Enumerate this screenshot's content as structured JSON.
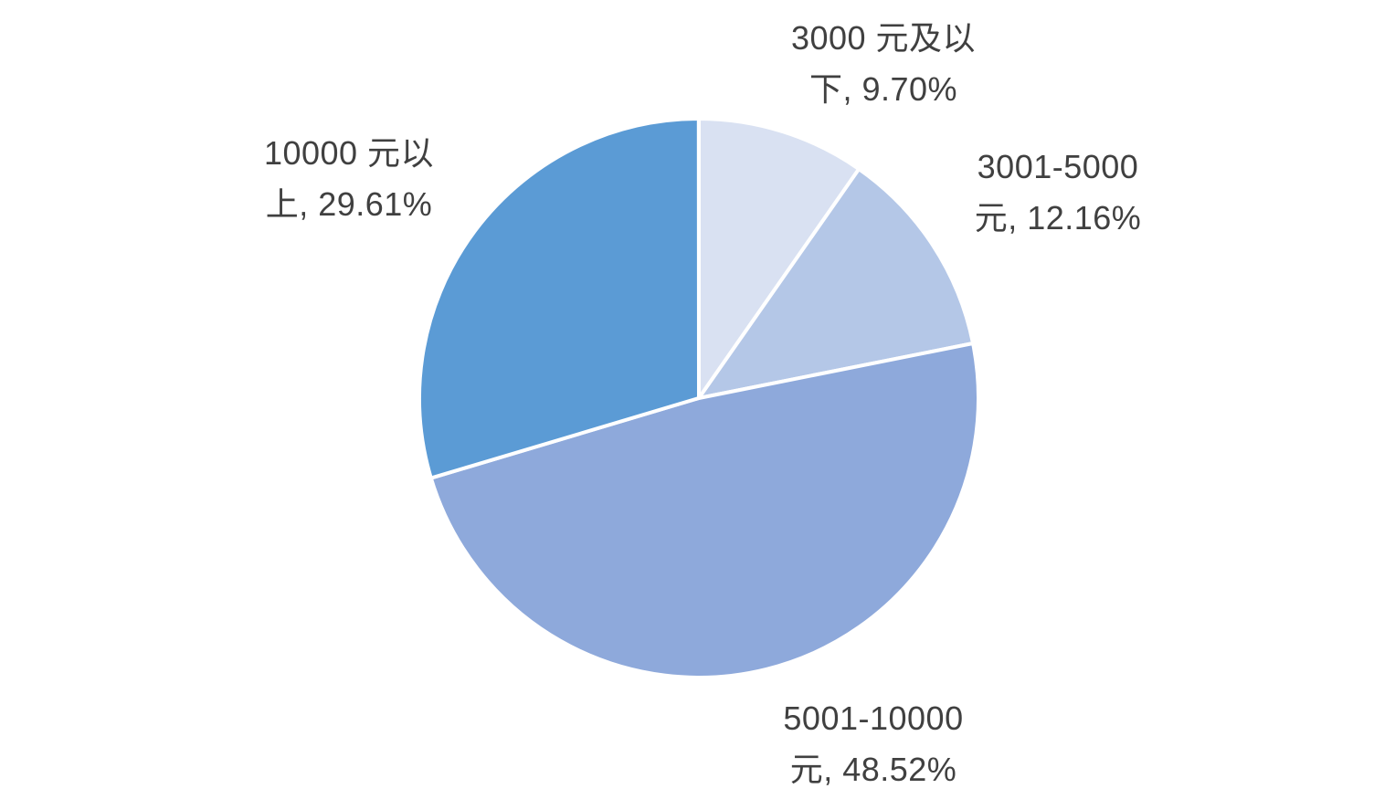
{
  "chart_data": {
    "type": "pie",
    "title": "",
    "categories": [
      "3000 元及以下",
      "3001-5000 元",
      "5001-10000 元",
      "10000 元以上"
    ],
    "values": [
      9.7,
      12.16,
      48.52,
      29.61
    ],
    "value_unit": "%",
    "start_angle_deg": 0,
    "direction": "clockwise",
    "legend": "none",
    "labels_position": "outside",
    "grid": "off",
    "colors": [
      "#D9E1F2",
      "#B4C7E7",
      "#8EA9DB",
      "#5B9BD5"
    ],
    "slice_border_color": "#FFFFFF",
    "label_text_color": "#404040",
    "background_color": "#FFFFFF",
    "labels": [
      {
        "text": "3000 元及以下, 9.70%",
        "lines": [
          "3000 元及以",
          "下, 9.70%"
        ]
      },
      {
        "text": "3001-5000 元, 12.16%",
        "lines": [
          "3001-5000",
          "元, 12.16%"
        ]
      },
      {
        "text": "5001-10000 元, 48.52%",
        "lines": [
          "5001-10000",
          "元, 48.52%"
        ]
      },
      {
        "text": "10000 元以上, 29.61%",
        "lines": [
          "10000 元以",
          "上, 29.61%"
        ]
      }
    ]
  }
}
